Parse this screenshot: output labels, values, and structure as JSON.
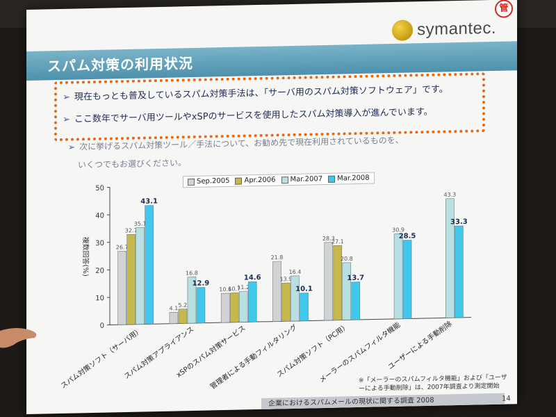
{
  "logo": {
    "text": "symantec."
  },
  "badge": {
    "text": "管"
  },
  "slide": {
    "title": "スパム対策の利用状況",
    "bullets": [
      "現在もっとも普及しているスパム対策手法は、「サーバ用のスパム対策ソフトウェア」です。",
      "ここ数年でサーバ用ツールやxSPのサービスを使用したスパム対策導入が進んでいます。"
    ],
    "question_line1": "次に挙げるスパム対策ツール／手法について、お勧め先で現在利用されているものを、",
    "question_line2": "いくつでもお選びください。",
    "note": "※「メーラーのスパムフィルタ機能」および「ユーザーによる手動削除」は、2007年調査より測定開始",
    "footer": "企業におけるスパムメールの現状に関する調査 2008",
    "page": "14"
  },
  "colors": {
    "sep2005": "#d2d2d2",
    "apr2006": "#c6b84a",
    "mar2007": "#b8e0e0",
    "mar2008": "#3fc8ec",
    "accent_border": "#e06a1a",
    "title_band": "#5a9cb6"
  },
  "chart_data": {
    "type": "bar",
    "ylabel": "複数回答(%)",
    "ylim": [
      0,
      50
    ],
    "yticks": [
      "0",
      "10",
      "20",
      "30",
      "40",
      "50"
    ],
    "categories": [
      "スパム対策ソフト（サーバ用）",
      "スパム対策アプライアンス",
      "xSPのスパム対策サービス",
      "管理者による手動フィルタリング",
      "スパム対策ソフト（PC用）",
      "メーラーのスパムフィルタ機能",
      "ユーザーによる手動削除"
    ],
    "series": [
      {
        "name": "Sep.2005",
        "values": [
          26.7,
          4.1,
          10.6,
          21.8,
          28.3,
          null,
          null
        ]
      },
      {
        "name": "Apr.2006",
        "values": [
          32.7,
          5.2,
          10.7,
          13.9,
          27.1,
          null,
          null
        ]
      },
      {
        "name": "Mar.2007",
        "values": [
          35.1,
          16.8,
          11.2,
          16.4,
          20.8,
          30.9,
          43.3
        ]
      },
      {
        "name": "Mar.2008",
        "values": [
          43.1,
          12.9,
          14.6,
          10.1,
          13.7,
          28.5,
          33.3
        ]
      }
    ],
    "value_labels": [
      [
        "26.7",
        "32.7",
        "35.1",
        "43.1"
      ],
      [
        "4.1",
        "5.2",
        "16.8",
        "12.9"
      ],
      [
        "10.6",
        "10.7",
        "11.2",
        "14.6"
      ],
      [
        "21.8",
        "13.9",
        "16.4",
        "10.1"
      ],
      [
        "28.3",
        "27.1",
        "20.8",
        "13.7"
      ],
      [
        null,
        null,
        "30.9",
        "28.5"
      ],
      [
        null,
        null,
        "43.3",
        "33.3"
      ]
    ],
    "legend_position": "top-center",
    "grid": false
  }
}
